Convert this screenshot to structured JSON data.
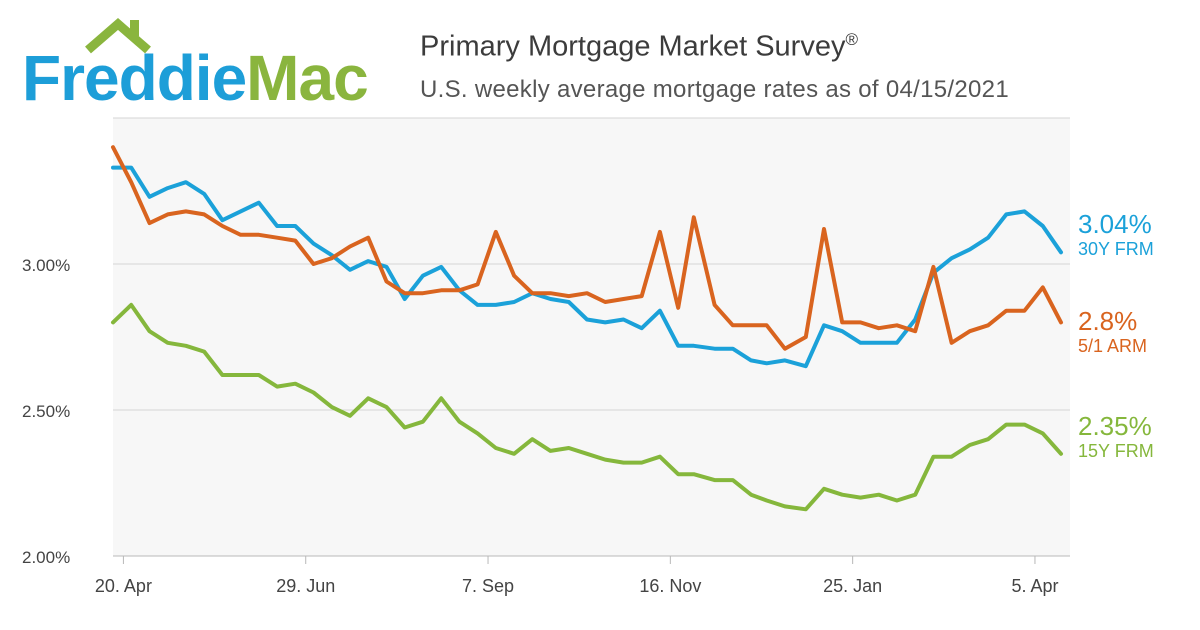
{
  "header": {
    "brand": "Freddie Mac",
    "title": "Primary Mortgage Market Survey",
    "title_mark": "®",
    "subtitle": "U.S. weekly average mortgage rates as of 04/15/2021"
  },
  "colors": {
    "frm30": "#1ba1d9",
    "arm51": "#d9641f",
    "frm15": "#85b73c",
    "plot_bg": "#f7f7f7",
    "grid": "#d4d4d4",
    "axis_text": "#444444",
    "logo_blue": "#1d9ed8",
    "logo_green": "#8ab53e"
  },
  "end_labels": [
    {
      "id": "frm30",
      "value": "3.04%",
      "name": "30Y FRM"
    },
    {
      "id": "arm51",
      "value": "2.8%",
      "name": "5/1 ARM"
    },
    {
      "id": "frm15",
      "value": "2.35%",
      "name": "15Y FRM"
    }
  ],
  "chart_data": {
    "type": "line",
    "title": "Primary Mortgage Market Survey",
    "subtitle": "U.S. weekly average mortgage rates as of 04/15/2021",
    "x": [
      "2020-04-16",
      "2020-04-23",
      "2020-04-30",
      "2020-05-07",
      "2020-05-14",
      "2020-05-21",
      "2020-05-28",
      "2020-06-04",
      "2020-06-11",
      "2020-06-18",
      "2020-06-25",
      "2020-07-02",
      "2020-07-09",
      "2020-07-16",
      "2020-07-23",
      "2020-07-30",
      "2020-08-06",
      "2020-08-13",
      "2020-08-20",
      "2020-08-27",
      "2020-09-03",
      "2020-09-10",
      "2020-09-17",
      "2020-09-24",
      "2020-10-01",
      "2020-10-08",
      "2020-10-15",
      "2020-10-22",
      "2020-10-29",
      "2020-11-05",
      "2020-11-12",
      "2020-11-19",
      "2020-11-25",
      "2020-12-03",
      "2020-12-10",
      "2020-12-17",
      "2020-12-23",
      "2020-12-30",
      "2021-01-07",
      "2021-01-14",
      "2021-01-21",
      "2021-01-28",
      "2021-02-04",
      "2021-02-11",
      "2021-02-18",
      "2021-02-25",
      "2021-03-04",
      "2021-03-11",
      "2021-03-18",
      "2021-03-25",
      "2021-04-01",
      "2021-04-08",
      "2021-04-15"
    ],
    "x_ticks": [
      "20. Apr",
      "29. Jun",
      "7. Sep",
      "16. Nov",
      "25. Jan",
      "5. Apr"
    ],
    "x_tick_dates": [
      "2020-04-20",
      "2020-06-29",
      "2020-09-07",
      "2020-11-16",
      "2021-01-25",
      "2021-04-05"
    ],
    "y_ticks": [
      "2.00%",
      "2.50%",
      "3.00%"
    ],
    "y_tick_values": [
      2.0,
      2.5,
      3.0
    ],
    "ylim": [
      2.0,
      3.5
    ],
    "grid": true,
    "legend": "right (end-of-line labels)",
    "series": [
      {
        "name": "30Y FRM",
        "color": "#1ba1d9",
        "values": [
          3.33,
          3.33,
          3.23,
          3.26,
          3.28,
          3.24,
          3.15,
          3.18,
          3.21,
          3.13,
          3.13,
          3.07,
          3.03,
          2.98,
          3.01,
          2.99,
          2.88,
          2.96,
          2.99,
          2.91,
          2.86,
          2.86,
          2.87,
          2.9,
          2.88,
          2.87,
          2.81,
          2.8,
          2.81,
          2.78,
          2.84,
          2.72,
          2.72,
          2.71,
          2.71,
          2.67,
          2.66,
          2.67,
          2.65,
          2.79,
          2.77,
          2.73,
          2.73,
          2.73,
          2.81,
          2.97,
          3.02,
          3.05,
          3.09,
          3.17,
          3.18,
          3.13,
          3.04
        ]
      },
      {
        "name": "5/1 ARM",
        "color": "#d9641f",
        "values": [
          3.4,
          3.28,
          3.14,
          3.17,
          3.18,
          3.17,
          3.13,
          3.1,
          3.1,
          3.09,
          3.08,
          3.0,
          3.02,
          3.06,
          3.09,
          2.94,
          2.9,
          2.9,
          2.91,
          2.91,
          2.93,
          3.11,
          2.96,
          2.9,
          2.9,
          2.89,
          2.9,
          2.87,
          2.88,
          2.89,
          3.11,
          2.85,
          3.16,
          2.86,
          2.79,
          2.79,
          2.79,
          2.71,
          2.75,
          3.12,
          2.8,
          2.8,
          2.78,
          2.79,
          2.77,
          2.99,
          2.73,
          2.77,
          2.79,
          2.84,
          2.84,
          2.92,
          2.8
        ]
      },
      {
        "name": "15Y FRM",
        "color": "#85b73c",
        "values": [
          2.8,
          2.86,
          2.77,
          2.73,
          2.72,
          2.7,
          2.62,
          2.62,
          2.62,
          2.58,
          2.59,
          2.56,
          2.51,
          2.48,
          2.54,
          2.51,
          2.44,
          2.46,
          2.54,
          2.46,
          2.42,
          2.37,
          2.35,
          2.4,
          2.36,
          2.37,
          2.35,
          2.33,
          2.32,
          2.32,
          2.34,
          2.28,
          2.28,
          2.26,
          2.26,
          2.21,
          2.19,
          2.17,
          2.16,
          2.23,
          2.21,
          2.2,
          2.21,
          2.19,
          2.21,
          2.34,
          2.34,
          2.38,
          2.4,
          2.45,
          2.45,
          2.42,
          2.35
        ]
      }
    ]
  }
}
